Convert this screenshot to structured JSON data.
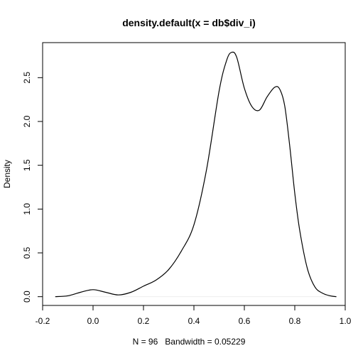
{
  "chart_data": {
    "type": "line",
    "title": "density.default(x = db$div_i)",
    "xlabel": "N = 96   Bandwidth = 0.05229",
    "ylabel": "Density",
    "xlim": [
      -0.2,
      1.0
    ],
    "ylim": [
      -0.1,
      2.9
    ],
    "grid": false,
    "x_ticks": [
      "-0.2",
      "0.0",
      "0.2",
      "0.4",
      "0.6",
      "0.8",
      "1.0"
    ],
    "y_ticks": [
      "0.0",
      "0.5",
      "1.0",
      "1.5",
      "2.0",
      "2.5"
    ],
    "series": [
      {
        "color": "#000000",
        "x": [
          -0.15,
          -0.1,
          -0.05,
          0.0,
          0.05,
          0.1,
          0.15,
          0.2,
          0.25,
          0.3,
          0.35,
          0.4,
          0.45,
          0.5,
          0.53,
          0.55,
          0.57,
          0.6,
          0.63,
          0.66,
          0.69,
          0.72,
          0.74,
          0.76,
          0.78,
          0.8,
          0.82,
          0.85,
          0.88,
          0.91,
          0.94,
          0.965
        ],
        "y": [
          0.0,
          0.01,
          0.05,
          0.08,
          0.05,
          0.02,
          0.05,
          0.12,
          0.19,
          0.31,
          0.52,
          0.82,
          1.45,
          2.35,
          2.7,
          2.79,
          2.73,
          2.38,
          2.17,
          2.13,
          2.28,
          2.39,
          2.37,
          2.18,
          1.72,
          1.18,
          0.75,
          0.32,
          0.11,
          0.04,
          0.01,
          0.0
        ]
      }
    ]
  }
}
